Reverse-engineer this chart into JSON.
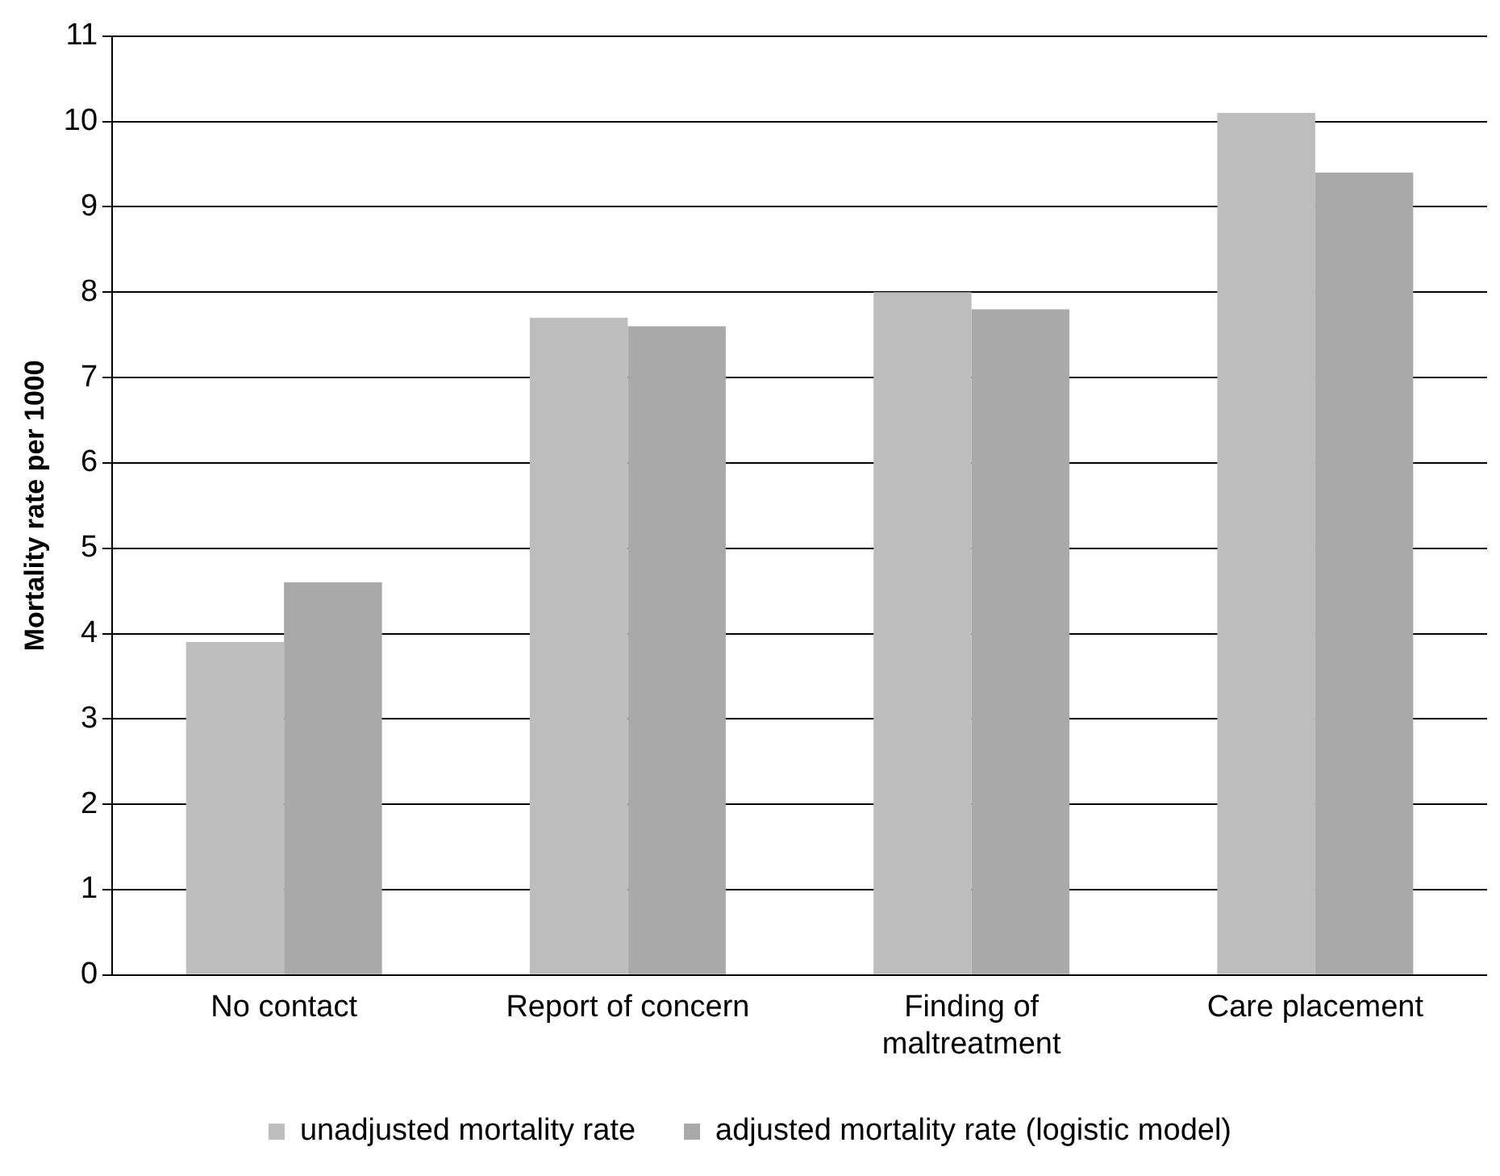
{
  "chart_data": {
    "type": "bar",
    "ylabel": "Mortality rate per 1000",
    "categories": [
      "No contact",
      "Report of concern",
      "Finding of maltreatment",
      "Care placement"
    ],
    "series": [
      {
        "name": "unadjusted mortality rate",
        "color": "#bdbdbd",
        "values": [
          3.9,
          7.7,
          8.0,
          10.1
        ]
      },
      {
        "name": "adjusted mortality rate (logistic model)",
        "color": "#a9a9a9",
        "values": [
          4.6,
          7.6,
          7.8,
          9.4
        ]
      }
    ],
    "ylim": [
      0,
      11
    ],
    "yticks": [
      0,
      1,
      2,
      3,
      4,
      5,
      6,
      7,
      8,
      9,
      10,
      11
    ],
    "grid": "y",
    "legend": "bottom"
  }
}
